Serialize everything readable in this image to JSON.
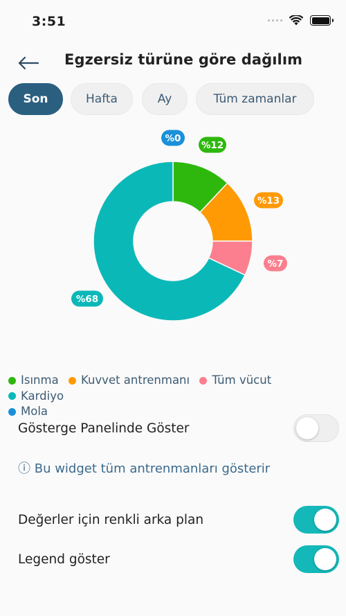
{
  "status_bar": {
    "time": "3:51"
  },
  "header": {
    "title": "Egzersiz türüne göre dağılım"
  },
  "tabs": [
    {
      "label": "Son",
      "active": true
    },
    {
      "label": "Hafta",
      "active": false
    },
    {
      "label": "Ay",
      "active": false
    },
    {
      "label": "Tüm zamanlar",
      "active": false
    }
  ],
  "chart_data": {
    "type": "pie",
    "donut": true,
    "slices": [
      {
        "label": "Isınma",
        "value": 12,
        "display": "%12",
        "color": "#2eb80d"
      },
      {
        "label": "Kuvvet antrenmanı",
        "value": 13,
        "display": "%13",
        "color": "#ff9a05"
      },
      {
        "label": "Tüm vücut",
        "value": 7,
        "display": "%7",
        "color": "#fb7f8e"
      },
      {
        "label": "Kardiyo",
        "value": 68,
        "display": "%68",
        "color": "#0bb8b8"
      },
      {
        "label": "Mola",
        "value": 0,
        "display": "%0",
        "color": "#1a90d9"
      }
    ],
    "legend_position": "bottom"
  },
  "legend": [
    {
      "label": "Isınma",
      "color": "#2eb80d"
    },
    {
      "label": "Kuvvet antrenmanı",
      "color": "#ff9a05"
    },
    {
      "label": "Tüm vücut",
      "color": "#fb7f8e"
    },
    {
      "label": "Kardiyo",
      "color": "#0bb8b8"
    },
    {
      "label": "Mola",
      "color": "#1a90d9"
    }
  ],
  "settings": {
    "dashboard": {
      "label": "Gösterge Panelinde Göster",
      "on": false
    },
    "info": "ⓘ Bu widget tüm antrenmanları gösterir",
    "colored_bg": {
      "label": "Değerler için renkli arka plan",
      "on": true
    },
    "show_legend": {
      "label": "Legend göster",
      "on": true
    }
  }
}
